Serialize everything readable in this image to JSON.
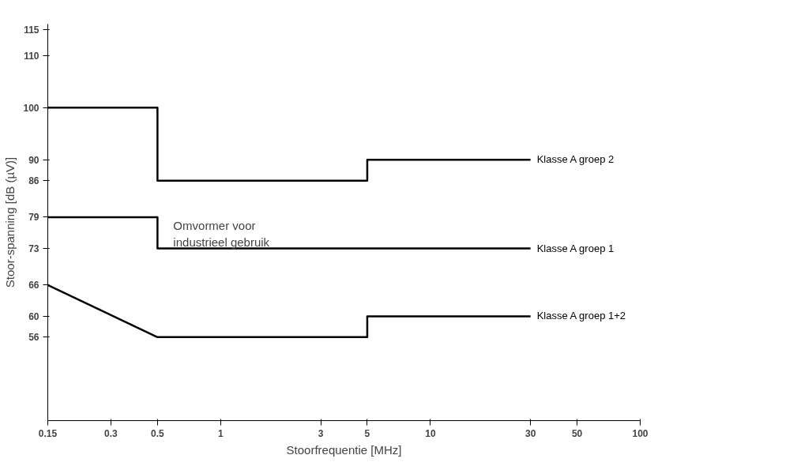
{
  "chart_data": {
    "type": "line",
    "xlabel": "Stoorfrequentie [MHz]",
    "ylabel": "Stoor-spanning [dB (µV)]",
    "log": "x",
    "xlim": [
      0.15,
      100
    ],
    "xticks": [
      0.15,
      0.3,
      0.5,
      1,
      3,
      5,
      10,
      30,
      50,
      100
    ],
    "ylim": [
      40,
      116
    ],
    "yticks": [
      56,
      60,
      66,
      73,
      79,
      86,
      90,
      100,
      110,
      115
    ],
    "grid": false,
    "marker": "none",
    "line_style": "solid",
    "series": [
      {
        "name": "Klasse A groep 2",
        "color": "#000000",
        "x": [
          0.15,
          0.5,
          0.5,
          5,
          5,
          30
        ],
        "values": [
          100,
          100,
          86,
          86,
          90,
          90
        ]
      },
      {
        "name": "Klasse A groep 1",
        "color": "#000000",
        "x": [
          0.15,
          0.5,
          0.5,
          30
        ],
        "values": [
          79,
          79,
          73,
          73
        ]
      },
      {
        "name": "Klasse A groep 1+2",
        "color": "#000000",
        "x": [
          0.15,
          0.5,
          5,
          5,
          30
        ],
        "values": [
          66,
          56,
          56,
          60,
          60
        ]
      }
    ],
    "annotations": [
      {
        "text": "Omvormer voor industrieel gebruik",
        "x": 0.5,
        "y": 79
      }
    ]
  }
}
